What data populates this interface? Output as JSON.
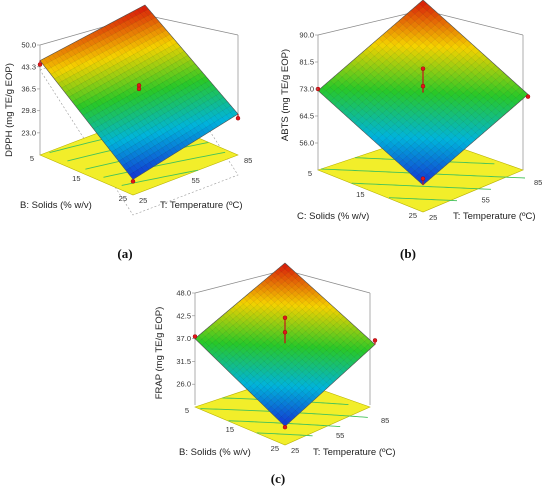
{
  "chart_data": [
    {
      "type": "surface3d",
      "panel_label": "(a)",
      "title": "",
      "zlabel": "DPPH (mg TE/g EOP)",
      "xlabel": "T: Temperature (ºC)",
      "ylabel": "B: Solids (% w/v)",
      "z_ticks": [
        "23.0",
        "29.8",
        "36.5",
        "43.3",
        "50.0"
      ],
      "zlim": [
        16.2,
        50.0
      ],
      "x_ticks": [
        "25",
        "55",
        "85"
      ],
      "y_ticks": [
        "5",
        "15",
        "25"
      ],
      "surface_corners": {
        "solids5_temp25": 45.2,
        "solids5_temp85": 50.0,
        "solids25_temp25": 21.0,
        "solids25_temp85": 28.8
      },
      "design_points": [
        {
          "solids": 5,
          "temperature": 25,
          "value": 44.0
        },
        {
          "solids": 25,
          "temperature": 85,
          "value": 27.5
        },
        {
          "solids": 25,
          "temperature": 25,
          "value": 20.4
        },
        {
          "solids": 15,
          "temperature": 55,
          "value": 37.6
        },
        {
          "solids": 15,
          "temperature": 55,
          "value": 36.5
        }
      ],
      "floor_color": "#f2ee2a"
    },
    {
      "type": "surface3d",
      "panel_label": "(b)",
      "title": "",
      "zlabel": "ABTS (mg TE/g EOP)",
      "xlabel": "T: Temperature (ºC)",
      "ylabel": "C: Solids (% w/v)",
      "z_ticks": [
        "56.0",
        "64.5",
        "73.0",
        "81.5",
        "90.0"
      ],
      "zlim": [
        47.5,
        90.0
      ],
      "x_ticks": [
        "25",
        "55",
        "85"
      ],
      "y_ticks": [
        "5",
        "15",
        "25"
      ],
      "surface_corners": {
        "solids5_temp25": 72.5,
        "solids5_temp85": 90.0,
        "solids25_temp25": 56.0,
        "solids25_temp85": 73.5
      },
      "design_points": [
        {
          "solids": 15,
          "temperature": 55,
          "value": 80.5
        },
        {
          "solids": 15,
          "temperature": 55,
          "value": 75.0
        },
        {
          "solids": 25,
          "temperature": 25,
          "value": 58.0
        },
        {
          "solids": 25,
          "temperature": 85,
          "value": 72.8
        },
        {
          "solids": 5,
          "temperature": 25,
          "value": 73.0
        }
      ],
      "floor_color": "#f2ee2a"
    },
    {
      "type": "surface3d",
      "panel_label": "(c)",
      "title": "",
      "zlabel": "FRAP (mg TE/g EOP)",
      "xlabel": "T: Temperature (ºC)",
      "ylabel": "B: Solids (% w/v)",
      "z_ticks": [
        "26.0",
        "31.5",
        "37.0",
        "42.5",
        "48.0"
      ],
      "zlim": [
        20.5,
        48.0
      ],
      "x_ticks": [
        "25",
        "55",
        "85"
      ],
      "y_ticks": [
        "5",
        "15",
        "25"
      ],
      "surface_corners": {
        "solids5_temp25": 37.0,
        "solids5_temp85": 48.0,
        "solids25_temp25": 25.0,
        "solids25_temp85": 37.5
      },
      "design_points": [
        {
          "solids": 15,
          "temperature": 55,
          "value": 43.0
        },
        {
          "solids": 15,
          "temperature": 55,
          "value": 39.5
        },
        {
          "solids": 25,
          "temperature": 25,
          "value": 24.8
        },
        {
          "solids": 25,
          "temperature": 85,
          "value": 38.5
        },
        {
          "solids": 5,
          "temperature": 25,
          "value": 37.5
        }
      ],
      "floor_color": "#f2ee2a"
    }
  ]
}
